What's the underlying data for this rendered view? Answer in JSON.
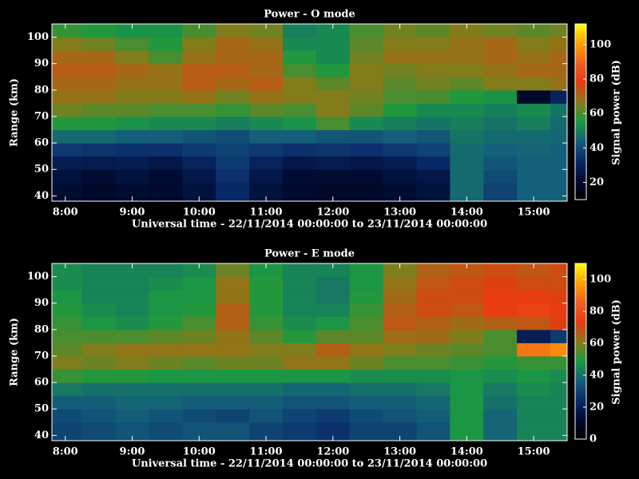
{
  "chart_data": [
    {
      "type": "heatmap",
      "title": "Power - O mode",
      "xlabel": "Universal time - 22/11/2014 00:00:00 to 23/11/2014 00:00:00",
      "ylabel": "Range (km)",
      "zlabel": "Signal power (dB)",
      "xlim": [
        7.8,
        15.5
      ],
      "ylim": [
        38,
        105
      ],
      "zlim": [
        10,
        112
      ],
      "xticks": [
        {
          "value": 8,
          "label": "8:00"
        },
        {
          "value": 9,
          "label": "9:00"
        },
        {
          "value": 10,
          "label": "10:00"
        },
        {
          "value": 11,
          "label": "11:00"
        },
        {
          "value": 12,
          "label": "12:00"
        },
        {
          "value": 13,
          "label": "13:00"
        },
        {
          "value": 14,
          "label": "14:00"
        },
        {
          "value": 15,
          "label": "15:00"
        }
      ],
      "yticks": [
        40,
        50,
        60,
        70,
        80,
        90,
        100
      ],
      "zticks": [
        20,
        40,
        60,
        80,
        100
      ],
      "colormap": [
        "#000000",
        "#000a30",
        "#0a2a6a",
        "#14607a",
        "#1a9a40",
        "#8a7a18",
        "#e83a10",
        "#f06020",
        "#ffa000",
        "#ffff00"
      ],
      "x_bins": [
        7.8,
        8.25,
        8.75,
        9.25,
        9.75,
        10.25,
        10.75,
        11.25,
        11.75,
        12.25,
        12.75,
        13.25,
        13.75,
        14.25,
        14.75,
        15.25,
        15.5
      ],
      "y_bins": [
        38,
        45,
        50,
        55,
        60,
        65,
        70,
        75,
        80,
        85,
        90,
        95,
        100,
        105
      ],
      "z": [
        [
          22,
          20,
          22,
          21,
          24,
          32,
          24,
          21,
          20,
          20,
          22,
          24,
          46,
          38,
          44,
          44
        ],
        [
          24,
          22,
          24,
          22,
          26,
          34,
          26,
          22,
          22,
          22,
          24,
          26,
          46,
          40,
          44,
          44
        ],
        [
          28,
          27,
          28,
          26,
          30,
          36,
          30,
          26,
          27,
          26,
          28,
          32,
          46,
          42,
          44,
          44
        ],
        [
          36,
          35,
          34,
          34,
          36,
          38,
          36,
          34,
          35,
          34,
          36,
          38,
          46,
          44,
          45,
          44
        ],
        [
          46,
          46,
          44,
          44,
          42,
          40,
          44,
          44,
          42,
          42,
          44,
          42,
          48,
          46,
          46,
          45
        ],
        [
          56,
          56,
          54,
          52,
          52,
          50,
          52,
          54,
          60,
          52,
          50,
          48,
          50,
          48,
          50,
          46
        ],
        [
          64,
          62,
          62,
          60,
          60,
          58,
          62,
          60,
          66,
          62,
          56,
          52,
          52,
          50,
          52,
          48
        ],
        [
          68,
          68,
          66,
          66,
          68,
          64,
          68,
          66,
          66,
          64,
          60,
          60,
          56,
          54,
          20,
          30
        ],
        [
          70,
          70,
          68,
          68,
          72,
          70,
          72,
          66,
          62,
          66,
          62,
          64,
          62,
          66,
          66,
          68
        ],
        [
          72,
          72,
          70,
          68,
          72,
          72,
          70,
          60,
          56,
          66,
          64,
          66,
          66,
          68,
          70,
          70
        ],
        [
          70,
          70,
          66,
          60,
          68,
          70,
          70,
          56,
          52,
          64,
          68,
          68,
          68,
          70,
          68,
          70
        ],
        [
          66,
          64,
          60,
          56,
          66,
          70,
          68,
          52,
          52,
          62,
          66,
          66,
          68,
          70,
          66,
          68
        ],
        [
          58,
          56,
          54,
          54,
          60,
          66,
          64,
          50,
          52,
          60,
          64,
          62,
          66,
          64,
          62,
          64
        ]
      ]
    },
    {
      "type": "heatmap",
      "title": "Power - E mode",
      "xlabel": "Universal time - 22/11/2014 00:00:00 to 23/11/2014 00:00:00",
      "ylabel": "Range (km)",
      "zlabel": "Signal power (dB)",
      "xlim": [
        7.8,
        15.5
      ],
      "ylim": [
        38,
        105
      ],
      "zlim": [
        0,
        110
      ],
      "xticks": [
        {
          "value": 8,
          "label": "8:00"
        },
        {
          "value": 9,
          "label": "9:00"
        },
        {
          "value": 10,
          "label": "10:00"
        },
        {
          "value": 11,
          "label": "11:00"
        },
        {
          "value": 12,
          "label": "12:00"
        },
        {
          "value": 13,
          "label": "13:00"
        },
        {
          "value": 14,
          "label": "14:00"
        },
        {
          "value": 15,
          "label": "15:00"
        }
      ],
      "yticks": [
        40,
        50,
        60,
        70,
        80,
        90,
        100
      ],
      "zticks": [
        0,
        20,
        40,
        60,
        80,
        100
      ],
      "colormap": [
        "#000000",
        "#000a30",
        "#0a2a6a",
        "#14607a",
        "#1a9a40",
        "#8a7a18",
        "#e83a10",
        "#f06020",
        "#ffa000",
        "#ffff00"
      ],
      "x_bins": [
        7.8,
        8.25,
        8.75,
        9.25,
        9.75,
        10.25,
        10.75,
        11.25,
        11.75,
        12.25,
        12.75,
        13.25,
        13.75,
        14.25,
        14.75,
        15.25,
        15.5
      ],
      "y_bins": [
        38,
        45,
        50,
        55,
        60,
        65,
        70,
        75,
        80,
        85,
        90,
        95,
        100,
        105
      ],
      "z": [
        [
          30,
          32,
          34,
          32,
          34,
          34,
          30,
          28,
          26,
          30,
          30,
          34,
          48,
          38,
          44,
          44
        ],
        [
          32,
          34,
          36,
          34,
          32,
          30,
          34,
          30,
          28,
          32,
          34,
          36,
          48,
          38,
          44,
          44
        ],
        [
          36,
          36,
          38,
          38,
          36,
          36,
          36,
          34,
          34,
          36,
          36,
          38,
          48,
          40,
          44,
          44
        ],
        [
          42,
          40,
          40,
          40,
          40,
          40,
          40,
          38,
          38,
          40,
          40,
          42,
          48,
          42,
          46,
          44
        ],
        [
          52,
          50,
          50,
          48,
          48,
          48,
          48,
          48,
          48,
          46,
          46,
          46,
          48,
          46,
          48,
          46
        ],
        [
          60,
          58,
          60,
          58,
          56,
          58,
          58,
          62,
          62,
          58,
          54,
          54,
          52,
          50,
          52,
          52
        ],
        [
          56,
          60,
          62,
          62,
          62,
          62,
          60,
          60,
          66,
          62,
          60,
          58,
          56,
          54,
          90,
          94
        ],
        [
          54,
          54,
          54,
          56,
          58,
          62,
          56,
          50,
          56,
          56,
          64,
          64,
          60,
          54,
          20,
          28
        ],
        [
          52,
          48,
          46,
          50,
          54,
          66,
          52,
          46,
          48,
          54,
          68,
          66,
          64,
          66,
          68,
          72
        ],
        [
          50,
          46,
          44,
          48,
          50,
          66,
          50,
          44,
          44,
          52,
          66,
          70,
          68,
          74,
          76,
          74
        ],
        [
          48,
          44,
          44,
          48,
          48,
          62,
          50,
          44,
          42,
          50,
          64,
          70,
          70,
          74,
          74,
          72
        ],
        [
          46,
          44,
          44,
          46,
          48,
          62,
          50,
          44,
          42,
          48,
          62,
          68,
          70,
          72,
          70,
          70
        ],
        [
          46,
          44,
          44,
          44,
          46,
          58,
          48,
          44,
          44,
          48,
          60,
          66,
          68,
          70,
          68,
          70
        ]
      ]
    }
  ]
}
